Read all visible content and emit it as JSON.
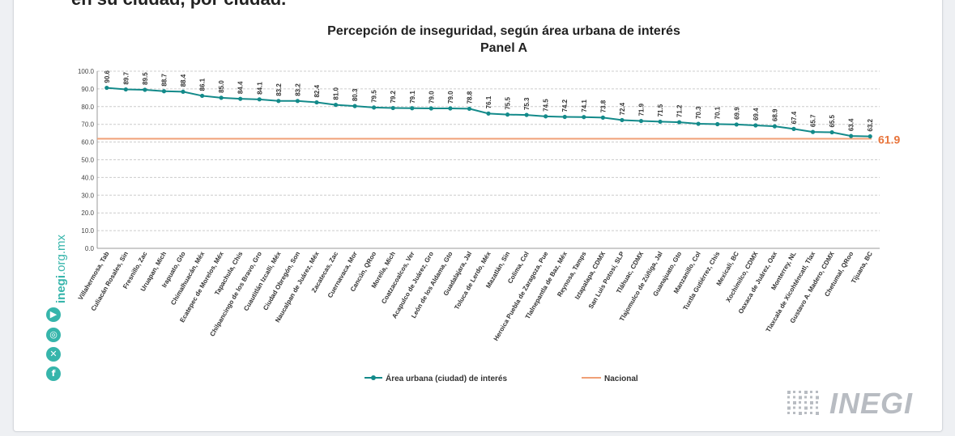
{
  "header": {
    "cut_text": "en su ciudad, por ciudad."
  },
  "sidebar": {
    "site_text_bold": "inegi",
    "site_text_rest": ".org.mx",
    "icons": [
      "youtube-icon",
      "instagram-icon",
      "x-icon",
      "facebook-icon"
    ]
  },
  "logo": {
    "text": "INEGI"
  },
  "colors": {
    "series": "#138a8a",
    "national": "#f0a077",
    "national_label": "#e8743b",
    "grid": "#cccccc",
    "social": "#36b5ab"
  },
  "chart_data": {
    "type": "line",
    "title": "Percepción de inseguridad, según área urbana de interés",
    "subtitle": "Panel A",
    "xlabel": "",
    "ylabel": "",
    "ylim": [
      0,
      100
    ],
    "yticks": [
      "0.0",
      "10.0",
      "20.0",
      "30.0",
      "40.0",
      "50.0",
      "60.0",
      "70.0",
      "80.0",
      "90.0",
      "100.0"
    ],
    "grid": true,
    "legend_position": "bottom",
    "categories": [
      "Villahermosa, Tab",
      "Culiacán Rosales, Sin",
      "Fresnillo, Zac",
      "Uruapan, Mich",
      "Irapuato, Gto",
      "Chimalhuacán, Méx",
      "Ecatepec de Morelos, Méx",
      "Tapachula, Chis",
      "Chilpancingo de los Bravo, Gro",
      "Cuautitlán Izcalli, Méx",
      "Ciudad Obregón, Son",
      "Naucalpan de Juárez, Méx",
      "Zacatecas, Zac",
      "Cuernavaca, Mor",
      "Cancún, QRoo",
      "Morelia, Mich",
      "Coatzacoalcos, Ver",
      "Acapulco de Juárez, Gro",
      "León de los Aldama, Gto",
      "Guadalajara, Jal",
      "Toluca de Lerdo, Méx",
      "Mazatlán, Sin",
      "Colima, Col",
      "Heroica Puebla de Zaragoza, Pue",
      "Tlalnepantla de Baz, Méx",
      "Reynosa, Tamps",
      "Iztapalapa, CDMX",
      "San Luis Potosí, SLP",
      "Tláhuac, CDMX",
      "Tlajomulco de Zúñiga, Jal",
      "Guanajuato, Gto",
      "Manzanillo, Col",
      "Tuxtla Gutiérrez, Chis",
      "Mexicali, BC",
      "Xochimilco, CDMX",
      "Oaxaca de Juárez, Oax",
      "Monterrey, NL",
      "Tlaxcala de Xicohténcatl, Tlax",
      "Gustavo A. Madero, CDMX",
      "Chetumal, QRoo",
      "Tijuana, BC"
    ],
    "series": [
      {
        "name": "Área urbana (ciudad) de interés",
        "values": [
          90.6,
          89.7,
          89.5,
          88.7,
          88.4,
          86.1,
          85.0,
          84.4,
          84.1,
          83.2,
          83.2,
          82.4,
          81.0,
          80.3,
          79.5,
          79.2,
          79.1,
          79.0,
          79.0,
          78.8,
          76.1,
          75.5,
          75.3,
          74.5,
          74.2,
          74.1,
          73.8,
          72.4,
          71.9,
          71.5,
          71.2,
          70.3,
          70.1,
          69.9,
          69.4,
          68.9,
          67.4,
          65.7,
          65.5,
          63.4,
          63.2
        ],
        "labels": [
          "90.6",
          "89.7",
          "89.5",
          "88.7",
          "88.4",
          "86.1",
          "85.0",
          "84.4",
          "84.1",
          "83.2",
          "83.2",
          "82.4",
          "81.0",
          "80.3",
          "79.5",
          "79.2",
          "79.1",
          "79.0",
          "79.0",
          "78.8",
          "76.1",
          "75.5",
          "75.3",
          "74.5",
          "74.2",
          "74.1",
          "73.8",
          "72.4",
          "71.9",
          "71.5",
          "71.2",
          "70.3",
          "70.1",
          "69.9",
          "69.4",
          "68.9",
          "67.4",
          "65.7",
          "65.5",
          "63.4",
          "63.2"
        ]
      },
      {
        "name": "Nacional",
        "value": 61.9,
        "label": "61.9"
      }
    ]
  }
}
